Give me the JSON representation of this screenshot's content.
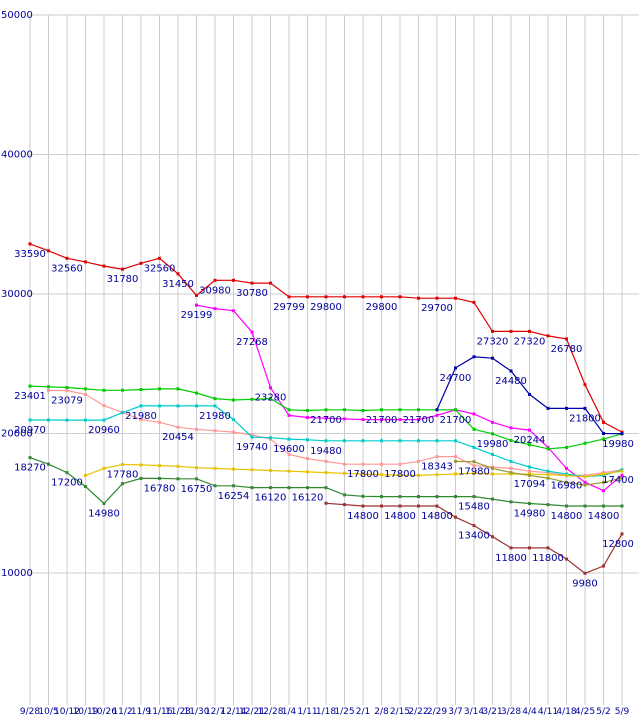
{
  "page": {
    "background": "#ffffff"
  },
  "chart_data": {
    "type": "line",
    "title": "",
    "xlabel": "",
    "ylabel": "",
    "grid": true,
    "legend": "none",
    "colors": {
      "grid": "#cccccc",
      "label": "#000099",
      "background": "#ffffff"
    },
    "y_axis": {
      "min": 10000,
      "max": 50000,
      "ticks": [
        50000,
        40000,
        30000,
        20000,
        10000
      ]
    },
    "x_labels": [
      "9/28",
      "10/5",
      "10/12",
      "10/19",
      "10/26",
      "11/2",
      "11/9",
      "11/16",
      "11/23",
      "11/30",
      "12/7",
      "12/14",
      "12/21",
      "12/28",
      "1/4",
      "1/11",
      "1/18",
      "1/25",
      "2/1",
      "2/8",
      "2/15",
      "2/22",
      "2/29",
      "3/7",
      "3/14",
      "3/21",
      "3/28",
      "4/4",
      "4/11",
      "4/18",
      "4/25",
      "5/2",
      "5/9"
    ],
    "series": [
      {
        "name": "series-red",
        "color": "#dd0000",
        "values": [
          33590,
          33100,
          32560,
          32300,
          32000,
          31780,
          32200,
          32560,
          31450,
          29900,
          30980,
          30980,
          30780,
          30780,
          29799,
          29799,
          29800,
          29800,
          29800,
          29800,
          29800,
          29700,
          29700,
          29700,
          29400,
          27320,
          27320,
          27320,
          27000,
          26780,
          23500,
          20800,
          20100
        ],
        "point_labels": {
          "0": "33590",
          "2": "32560",
          "5": "31780",
          "7": "32560",
          "8": "31450",
          "10": "30980",
          "12": "30780",
          "14": "29799",
          "16": "29800",
          "19": "29800",
          "22": "29700",
          "25": "27320",
          "27": "27320",
          "29": "26780"
        }
      },
      {
        "name": "series-magenta",
        "color": "#ff00ff",
        "values": [
          null,
          null,
          null,
          null,
          null,
          null,
          null,
          null,
          null,
          29199,
          28950,
          28800,
          27268,
          23280,
          21300,
          21150,
          21100,
          21050,
          21000,
          21000,
          21000,
          21000,
          21300,
          21700,
          21400,
          20800,
          20400,
          20244,
          19000,
          17500,
          16500,
          15900,
          17000
        ],
        "point_labels": {
          "9": "29199",
          "12": "27268",
          "13": "23280",
          "27": "20244"
        }
      },
      {
        "name": "series-green",
        "color": "#00cc00",
        "values": [
          23401,
          23350,
          23300,
          23200,
          23100,
          23100,
          23150,
          23200,
          23200,
          22900,
          22500,
          22400,
          22450,
          22500,
          21700,
          21650,
          21700,
          21700,
          21650,
          21700,
          21700,
          21700,
          21700,
          21700,
          20300,
          19980,
          19500,
          19200,
          18900,
          19000,
          19300,
          19600,
          19980
        ],
        "point_labels": {
          "0": "23401",
          "16": "21700",
          "19": "21700",
          "21": "21700",
          "23": "21700",
          "25": "19980",
          "32": "19980"
        }
      },
      {
        "name": "series-pink",
        "color": "#ff9999",
        "values": [
          null,
          23079,
          23079,
          22800,
          22000,
          21500,
          21000,
          20800,
          20454,
          20300,
          20200,
          20100,
          19900,
          19600,
          18500,
          18200,
          18000,
          17800,
          17800,
          17800,
          17800,
          18000,
          18343,
          18343,
          17700,
          17600,
          17500,
          17300,
          17200,
          17000,
          17000,
          17200,
          17400
        ],
        "point_labels": {
          "2": "23079",
          "8": "20454",
          "18": "17800",
          "20": "17800",
          "22": "18343",
          "32": "17400"
        }
      },
      {
        "name": "series-cyan",
        "color": "#00cccc",
        "values": [
          20970,
          20965,
          20960,
          20960,
          20960,
          21500,
          21980,
          21980,
          21980,
          21980,
          21980,
          21000,
          19740,
          19700,
          19600,
          19550,
          19480,
          19480,
          19480,
          19480,
          19480,
          19480,
          19480,
          19480,
          19000,
          18500,
          18000,
          17600,
          17300,
          17100,
          16900,
          17000,
          17400
        ],
        "point_labels": {
          "0": "20970",
          "4": "20960",
          "6": "21980",
          "10": "21980",
          "12": "19740",
          "14": "19600",
          "16": "19480"
        }
      },
      {
        "name": "series-navy",
        "color": "#0000aa",
        "values": [
          null,
          null,
          null,
          null,
          null,
          null,
          null,
          null,
          null,
          null,
          null,
          null,
          null,
          null,
          null,
          null,
          null,
          null,
          null,
          null,
          null,
          null,
          21700,
          24700,
          25500,
          25400,
          24480,
          22800,
          21800,
          21800,
          21800,
          20000,
          19990
        ],
        "point_labels": {
          "23": "24700",
          "26": "24480",
          "30": "21800"
        }
      },
      {
        "name": "series-yellow",
        "color": "#e6c200",
        "values": [
          null,
          null,
          null,
          17000,
          17500,
          17780,
          17750,
          17700,
          17650,
          17550,
          17500,
          17450,
          17400,
          17350,
          17300,
          17250,
          17200,
          17150,
          17100,
          17050,
          17000,
          17000,
          17050,
          17100,
          17150,
          17100,
          17094,
          17094,
          17050,
          16980,
          16900,
          17100,
          17300
        ],
        "point_labels": {
          "5": "17780",
          "27": "17094",
          "29": "16980"
        }
      },
      {
        "name": "series-darkgreen",
        "color": "#338833",
        "values": [
          18270,
          17800,
          17200,
          16200,
          14980,
          16400,
          16780,
          16780,
          16750,
          16750,
          16254,
          16254,
          16120,
          16120,
          16120,
          16120,
          16120,
          15600,
          15500,
          15480,
          15480,
          15480,
          15480,
          15480,
          15480,
          15300,
          15100,
          14980,
          14900,
          14800,
          14800,
          14800,
          14800
        ],
        "point_labels": {
          "0": "18270",
          "2": "17200",
          "4": "14980",
          "7": "16780",
          "9": "16750",
          "11": "16254",
          "13": "16120",
          "15": "16120",
          "24": "15480",
          "27": "14980",
          "29": "14800",
          "31": "14800"
        }
      },
      {
        "name": "series-maroon",
        "color": "#993333",
        "values": [
          null,
          null,
          null,
          null,
          null,
          null,
          null,
          null,
          null,
          null,
          null,
          null,
          null,
          null,
          null,
          null,
          15000,
          14900,
          14800,
          14800,
          14800,
          14800,
          14800,
          14000,
          13400,
          12600,
          11800,
          11800,
          11800,
          11000,
          9980,
          10500,
          12800
        ],
        "point_labels": {
          "18": "14800",
          "20": "14800",
          "22": "14800",
          "24": "13400",
          "26": "11800",
          "28": "11800",
          "30": "9980",
          "32": "12800"
        }
      },
      {
        "name": "series-olive",
        "color": "#999933",
        "values": [
          null,
          null,
          null,
          null,
          null,
          null,
          null,
          null,
          null,
          null,
          null,
          null,
          null,
          null,
          null,
          null,
          null,
          null,
          null,
          null,
          null,
          null,
          null,
          18000,
          17980,
          17500,
          17200,
          17000,
          16800,
          16500,
          16300,
          16500,
          16800
        ],
        "point_labels": {
          "24": "17980"
        }
      }
    ]
  }
}
